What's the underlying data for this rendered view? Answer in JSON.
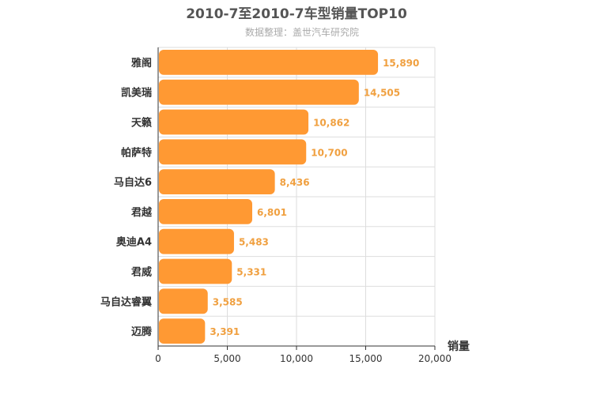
{
  "chart_data": {
    "type": "bar",
    "orientation": "horizontal",
    "title": "2010-7至2010-7车型销量TOP10",
    "subtitle": "数据整理：盖世汽车研究院",
    "xlabel": "销量",
    "ylabel": "",
    "categories": [
      "雅阁",
      "凯美瑞",
      "天籁",
      "帕萨特",
      "马自达6",
      "君越",
      "奥迪A4",
      "君威",
      "马自达睿翼",
      "迈腾"
    ],
    "values": [
      15890,
      14505,
      10862,
      10700,
      8436,
      6801,
      5483,
      5331,
      3585,
      3391
    ],
    "value_labels": [
      "15,890",
      "14,505",
      "10,862",
      "10,700",
      "8,436",
      "6,801",
      "5,483",
      "5,331",
      "3,585",
      "3,391"
    ],
    "xlim": [
      0,
      20000
    ],
    "ticks": [
      0,
      5000,
      10000,
      15000,
      20000
    ],
    "tick_labels": [
      "0",
      "5,000",
      "10,000",
      "15,000",
      "20,000"
    ],
    "grid": true,
    "legend": "none",
    "bar_color": "#ff9933",
    "label_color": "#f0a040"
  }
}
